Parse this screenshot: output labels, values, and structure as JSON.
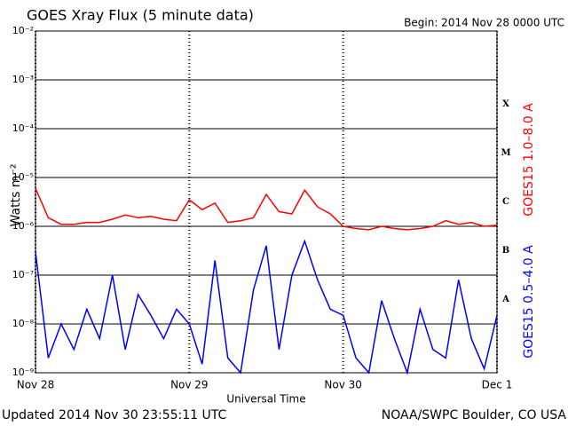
{
  "chart_data": {
    "type": "line",
    "title": "GOES Xray Flux (5 minute data)",
    "subtitle": "Begin:  2014 Nov 28 0000 UTC",
    "x_label": "Universal Time",
    "y_label": "Watts m⁻²",
    "footer_left": "Updated 2014 Nov 30 23:55:11 UTC",
    "footer_right": "NOAA/SWPC Boulder, CO USA",
    "flare_classes": [
      "X",
      "M",
      "C",
      "B",
      "A"
    ],
    "log_scale": true,
    "grid": true,
    "xlim": [
      0,
      72
    ],
    "xticks": [
      {
        "value": 0,
        "label": "Nov 28"
      },
      {
        "value": 24,
        "label": "Nov 29"
      },
      {
        "value": 48,
        "label": "Nov 30"
      },
      {
        "value": 72,
        "label": "Dec 1"
      }
    ],
    "ylim": [
      1e-09,
      0.01
    ],
    "yticks": [
      {
        "value": 1e-09,
        "label": "10⁻⁹"
      },
      {
        "value": 1e-08,
        "label": "10⁻⁸"
      },
      {
        "value": 1e-07,
        "label": "10⁻⁷"
      },
      {
        "value": 1e-06,
        "label": "10⁻⁶"
      },
      {
        "value": 1e-05,
        "label": "10⁻⁵"
      },
      {
        "value": 0.0001,
        "label": "10⁻⁴"
      },
      {
        "value": 0.001,
        "label": "10⁻³"
      },
      {
        "value": 0.01,
        "label": "10⁻²"
      }
    ],
    "x": [
      0,
      2,
      4,
      6,
      8,
      10,
      12,
      14,
      16,
      18,
      20,
      22,
      24,
      26,
      28,
      30,
      32,
      34,
      36,
      38,
      40,
      42,
      44,
      46,
      48,
      50,
      52,
      54,
      56,
      58,
      60,
      62,
      64,
      66,
      68,
      70,
      72
    ],
    "series": [
      {
        "name": "GOES15 1.0–8.0 A",
        "color": "#ff0000",
        "values": [
          6e-06,
          1.5e-06,
          1.1e-06,
          1.1e-06,
          1.2e-06,
          1.2e-06,
          1.4e-06,
          1.7e-06,
          1.5e-06,
          1.6e-06,
          1.4e-06,
          1.3e-06,
          3.5e-06,
          2.2e-06,
          3e-06,
          1.2e-06,
          1.3e-06,
          1.5e-06,
          4.5e-06,
          2e-06,
          1.8e-06,
          5.5e-06,
          2.5e-06,
          1.8e-06,
          1e-06,
          9e-07,
          8.5e-07,
          1e-06,
          9e-07,
          8.5e-07,
          9e-07,
          1e-06,
          1.3e-06,
          1.1e-06,
          1.2e-06,
          1e-06,
          1.05e-06
        ]
      },
      {
        "name": "GOES15 0.5–4.0 A",
        "color": "#0000ff",
        "values": [
          3e-07,
          2e-09,
          1e-08,
          3e-09,
          2e-08,
          5e-09,
          1e-07,
          3e-09,
          4e-08,
          1.5e-08,
          5e-09,
          2e-08,
          1e-08,
          1.5e-09,
          2e-07,
          2e-09,
          1e-09,
          5e-08,
          4e-07,
          3e-09,
          1e-07,
          5e-07,
          8e-08,
          2e-08,
          1.5e-08,
          2e-09,
          1e-09,
          3e-08,
          5e-09,
          1e-09,
          2e-08,
          3e-09,
          2e-09,
          8e-08,
          5e-09,
          1.2e-09,
          1.5e-08
        ]
      }
    ]
  }
}
